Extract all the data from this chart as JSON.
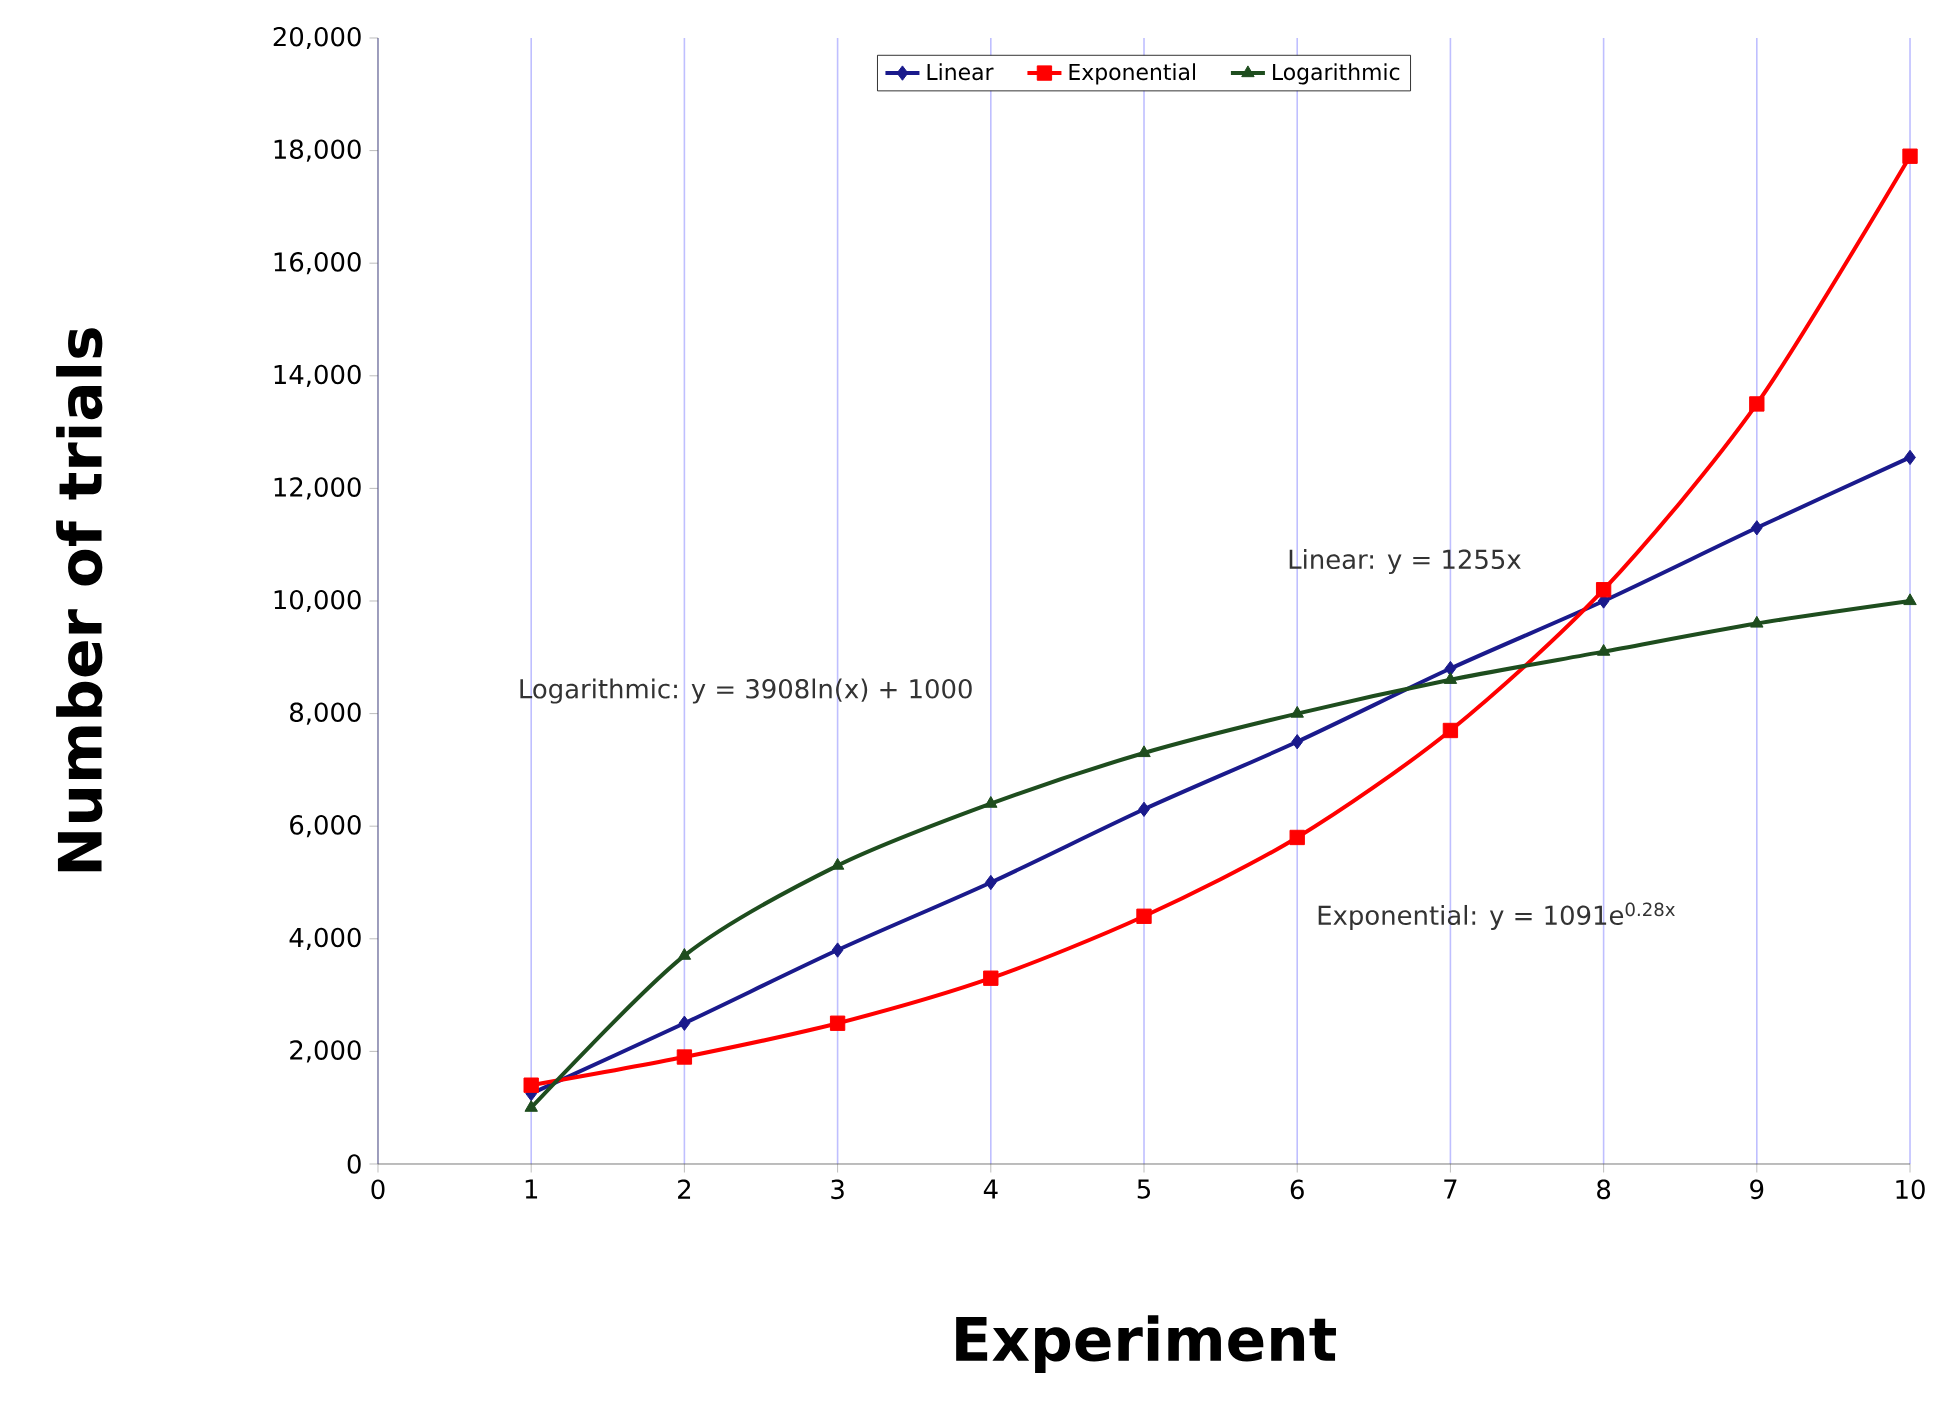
{
  "chart_data": {
    "type": "line",
    "xlabel": "Experiment",
    "ylabel": "Number of trials",
    "x": [
      1,
      2,
      3,
      4,
      5,
      6,
      7,
      8,
      9,
      10
    ],
    "series": [
      {
        "name": "Linear",
        "color": "#1a1a8c",
        "marker": "diamond",
        "values": [
          1250,
          2500,
          3800,
          5000,
          6300,
          7500,
          8800,
          10000,
          11300,
          12550
        ]
      },
      {
        "name": "Exponential",
        "color": "#ff0000",
        "marker": "square",
        "values": [
          1400,
          1900,
          2500,
          3300,
          4400,
          5800,
          7700,
          10200,
          13500,
          17900
        ]
      },
      {
        "name": "Logarithmic",
        "color": "#1e4d1e",
        "marker": "triangle",
        "values": [
          1000,
          3700,
          5300,
          6400,
          7300,
          8000,
          8600,
          9100,
          9600,
          10000
        ]
      }
    ],
    "line_style": "solid",
    "xlim": [
      0,
      10
    ],
    "ylim": [
      0,
      20000
    ],
    "xticks": [
      0,
      1,
      2,
      3,
      4,
      5,
      6,
      7,
      8,
      9,
      10
    ],
    "yticks": [
      {
        "value": 0,
        "label": "0"
      },
      {
        "value": 2000,
        "label": "2,000"
      },
      {
        "value": 4000,
        "label": "4,000"
      },
      {
        "value": 6000,
        "label": "6,000"
      },
      {
        "value": 8000,
        "label": "8,000"
      },
      {
        "value": 10000,
        "label": "10,000"
      },
      {
        "value": 12000,
        "label": "12,000"
      },
      {
        "value": 14000,
        "label": "14,000"
      },
      {
        "value": 16000,
        "label": "16,000"
      },
      {
        "value": 18000,
        "label": "18,000"
      },
      {
        "value": 20000,
        "label": "20,000"
      }
    ],
    "grid": "x",
    "legend": "top",
    "annotations": [
      "Linear: y = 1255x",
      "Logarithmic: y = 3908ln(x) + 1000",
      "Exponential: y = 1091e$^{0.28x}$"
    ]
  }
}
